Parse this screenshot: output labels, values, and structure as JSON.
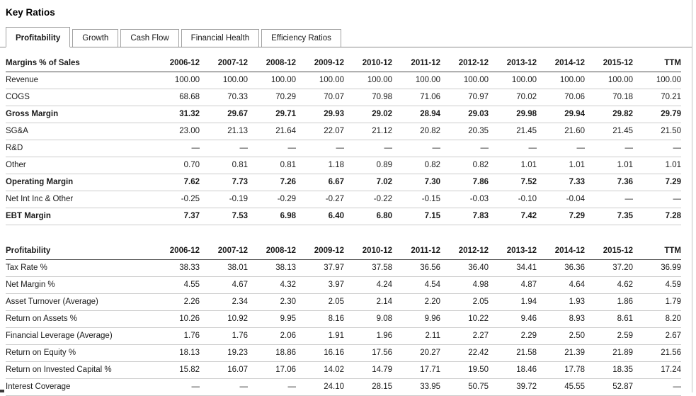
{
  "page": {
    "title": "Key Ratios"
  },
  "tabs": [
    {
      "id": "profitability",
      "label": "Profitability",
      "active": true
    },
    {
      "id": "growth",
      "label": "Growth",
      "active": false
    },
    {
      "id": "cash-flow",
      "label": "Cash Flow",
      "active": false
    },
    {
      "id": "financial-health",
      "label": "Financial Health",
      "active": false
    },
    {
      "id": "efficiency-ratios",
      "label": "Efficiency Ratios",
      "active": false
    }
  ],
  "columns": [
    "2006-12",
    "2007-12",
    "2008-12",
    "2009-12",
    "2010-12",
    "2011-12",
    "2012-12",
    "2013-12",
    "2014-12",
    "2015-12",
    "TTM"
  ],
  "tables": [
    {
      "id": "margins",
      "header": "Margins % of Sales",
      "rows": [
        {
          "label": "Revenue",
          "bold": false,
          "values": [
            "100.00",
            "100.00",
            "100.00",
            "100.00",
            "100.00",
            "100.00",
            "100.00",
            "100.00",
            "100.00",
            "100.00",
            "100.00"
          ]
        },
        {
          "label": "COGS",
          "bold": false,
          "values": [
            "68.68",
            "70.33",
            "70.29",
            "70.07",
            "70.98",
            "71.06",
            "70.97",
            "70.02",
            "70.06",
            "70.18",
            "70.21"
          ]
        },
        {
          "label": "Gross Margin",
          "bold": true,
          "values": [
            "31.32",
            "29.67",
            "29.71",
            "29.93",
            "29.02",
            "28.94",
            "29.03",
            "29.98",
            "29.94",
            "29.82",
            "29.79"
          ]
        },
        {
          "label": "SG&A",
          "bold": false,
          "values": [
            "23.00",
            "21.13",
            "21.64",
            "22.07",
            "21.12",
            "20.82",
            "20.35",
            "21.45",
            "21.60",
            "21.45",
            "21.50"
          ]
        },
        {
          "label": "R&D",
          "bold": false,
          "values": [
            "—",
            "—",
            "—",
            "—",
            "—",
            "—",
            "—",
            "—",
            "—",
            "—",
            "—"
          ]
        },
        {
          "label": "Other",
          "bold": false,
          "values": [
            "0.70",
            "0.81",
            "0.81",
            "1.18",
            "0.89",
            "0.82",
            "0.82",
            "1.01",
            "1.01",
            "1.01",
            "1.01"
          ]
        },
        {
          "label": "Operating Margin",
          "bold": true,
          "values": [
            "7.62",
            "7.73",
            "7.26",
            "6.67",
            "7.02",
            "7.30",
            "7.86",
            "7.52",
            "7.33",
            "7.36",
            "7.29"
          ]
        },
        {
          "label": "Net Int Inc & Other",
          "bold": false,
          "values": [
            "-0.25",
            "-0.19",
            "-0.29",
            "-0.27",
            "-0.22",
            "-0.15",
            "-0.03",
            "-0.10",
            "-0.04",
            "—",
            "—"
          ]
        },
        {
          "label": "EBT Margin",
          "bold": true,
          "values": [
            "7.37",
            "7.53",
            "6.98",
            "6.40",
            "6.80",
            "7.15",
            "7.83",
            "7.42",
            "7.29",
            "7.35",
            "7.28"
          ]
        }
      ]
    },
    {
      "id": "profitability",
      "header": "Profitability",
      "rows": [
        {
          "label": "Tax Rate %",
          "bold": false,
          "values": [
            "38.33",
            "38.01",
            "38.13",
            "37.97",
            "37.58",
            "36.56",
            "36.40",
            "34.41",
            "36.36",
            "37.20",
            "36.99"
          ]
        },
        {
          "label": "Net Margin %",
          "bold": false,
          "values": [
            "4.55",
            "4.67",
            "4.32",
            "3.97",
            "4.24",
            "4.54",
            "4.98",
            "4.87",
            "4.64",
            "4.62",
            "4.59"
          ]
        },
        {
          "label": "Asset Turnover (Average)",
          "bold": false,
          "values": [
            "2.26",
            "2.34",
            "2.30",
            "2.05",
            "2.14",
            "2.20",
            "2.05",
            "1.94",
            "1.93",
            "1.86",
            "1.79"
          ]
        },
        {
          "label": "Return on Assets %",
          "bold": false,
          "values": [
            "10.26",
            "10.92",
            "9.95",
            "8.16",
            "9.08",
            "9.96",
            "10.22",
            "9.46",
            "8.93",
            "8.61",
            "8.20"
          ]
        },
        {
          "label": "Financial Leverage (Average)",
          "bold": false,
          "values": [
            "1.76",
            "1.76",
            "2.06",
            "1.91",
            "1.96",
            "2.11",
            "2.27",
            "2.29",
            "2.50",
            "2.59",
            "2.67"
          ]
        },
        {
          "label": "Return on Equity %",
          "bold": false,
          "values": [
            "18.13",
            "19.23",
            "18.86",
            "16.16",
            "17.56",
            "20.27",
            "22.42",
            "21.58",
            "21.39",
            "21.89",
            "21.56"
          ]
        },
        {
          "label": "Return on Invested Capital %",
          "bold": false,
          "values": [
            "15.82",
            "16.07",
            "17.06",
            "14.02",
            "14.79",
            "17.71",
            "19.50",
            "18.46",
            "17.78",
            "18.35",
            "17.24"
          ]
        },
        {
          "label": "Interest Coverage",
          "bold": false,
          "values": [
            "—",
            "—",
            "—",
            "24.10",
            "28.15",
            "33.95",
            "50.75",
            "39.72",
            "45.55",
            "52.87",
            "—"
          ]
        }
      ]
    }
  ],
  "colors": {
    "text": "#1a1a1a",
    "tab_border": "#a0a0a0",
    "tabbar_rule": "#8c8c8c",
    "header_rule": "#4a4a4a",
    "row_rule": "#cccccc",
    "page_border": "#c2c2c2"
  }
}
